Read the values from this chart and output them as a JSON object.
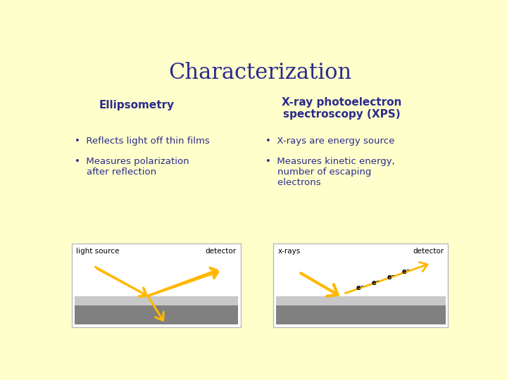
{
  "background_color": "#FFFFCC",
  "title": "Characterization",
  "title_color": "#2B2B8C",
  "title_fontsize": 22,
  "left_heading": "Ellipsometry",
  "right_heading": "X-ray photoelectron\nspectroscopy (XPS)",
  "heading_color": "#2B2B8C",
  "heading_fontsize": 11,
  "bullet_color": "#2B2B8C",
  "bullet_fontsize": 9.5,
  "left_bullets": [
    "Reflects light off thin films",
    "Measures polarization\nafter reflection"
  ],
  "right_bullets": [
    "X-rays are energy source",
    "Measures kinetic energy,\nnumber of escaping\nelectrons"
  ],
  "arrow_color": "#FFB800",
  "box_bg": "#FFFFFF",
  "box_outline": "#CCCCCC",
  "dark_layer_color": "#808080",
  "light_layer_color": "#C8C8C8",
  "label_fontsize": 7.5,
  "label_color": "#000000",
  "diagram_label_fontweight": "normal"
}
